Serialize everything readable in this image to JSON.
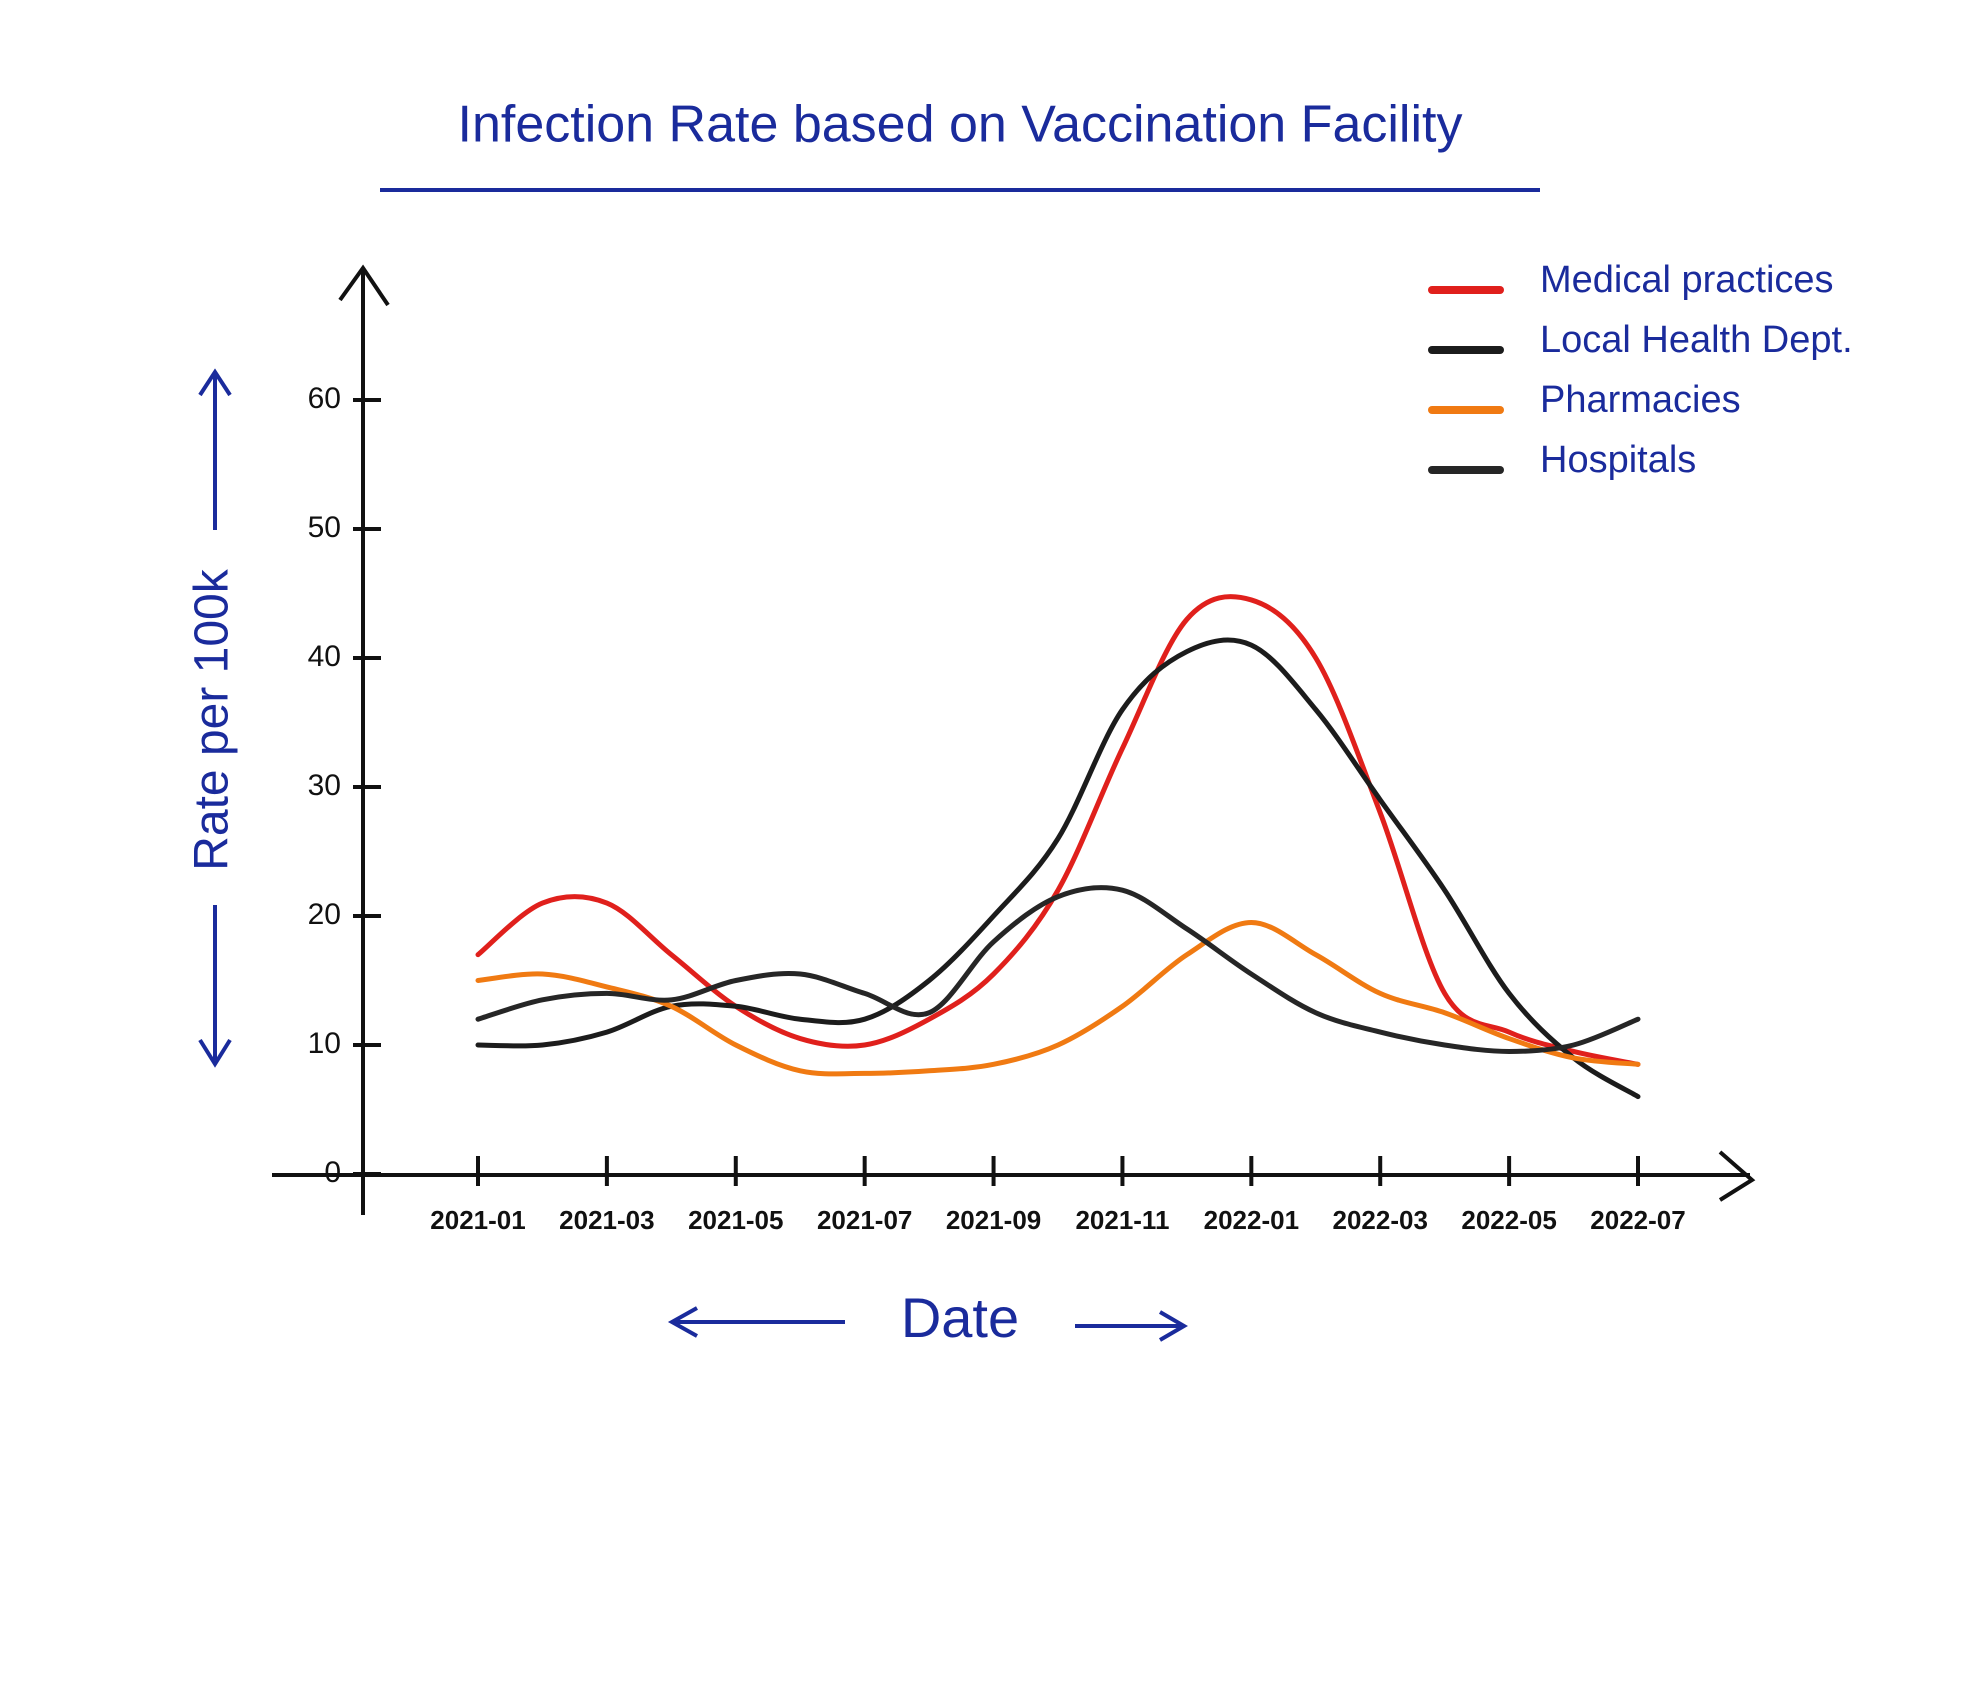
{
  "chart_data": {
    "type": "line",
    "title": "Infection Rate based on Vaccination Facility",
    "xlabel": "Date",
    "ylabel": "Rate per 100k",
    "categories": [
      "2021-01",
      null,
      "2021-03",
      null,
      "2021-05",
      null,
      "2021-07",
      null,
      "2021-09",
      null,
      "2021-11",
      null,
      "2022-01",
      null,
      "2022-03",
      null,
      "2022-05",
      null,
      "2022-07"
    ],
    "series": [
      {
        "name": "Medical practices",
        "color": "#e0201c",
        "values": [
          17,
          21,
          21,
          17,
          13,
          10.5,
          10,
          12,
          15.5,
          22,
          33,
          43,
          44.5,
          40,
          28,
          14,
          11,
          9.5,
          8.5
        ]
      },
      {
        "name": "Local Health Dept.",
        "color": "#1c1c1c",
        "values": [
          10,
          10,
          11,
          13,
          13,
          12,
          12,
          15,
          20,
          26,
          36,
          40.5,
          41,
          36,
          29,
          22,
          14,
          9,
          6
        ]
      },
      {
        "name": "Pharmacies",
        "color": "#f07a12",
        "values": [
          15,
          15.5,
          14.5,
          13,
          10,
          8,
          7.8,
          8,
          8.5,
          10,
          13,
          17,
          19.5,
          17,
          14,
          12.5,
          10.5,
          9,
          8.5
        ]
      },
      {
        "name": "Hospitals",
        "color": "#262626",
        "values": [
          12,
          13.5,
          14,
          13.5,
          15,
          15.5,
          14,
          12.5,
          18,
          21.5,
          22,
          19,
          15.5,
          12.5,
          11,
          10,
          9.5,
          10,
          12
        ]
      }
    ],
    "ylim": [
      0,
      60
    ],
    "yticks": [
      0,
      10,
      20,
      30,
      40,
      50,
      60
    ],
    "legend": "upper right"
  }
}
